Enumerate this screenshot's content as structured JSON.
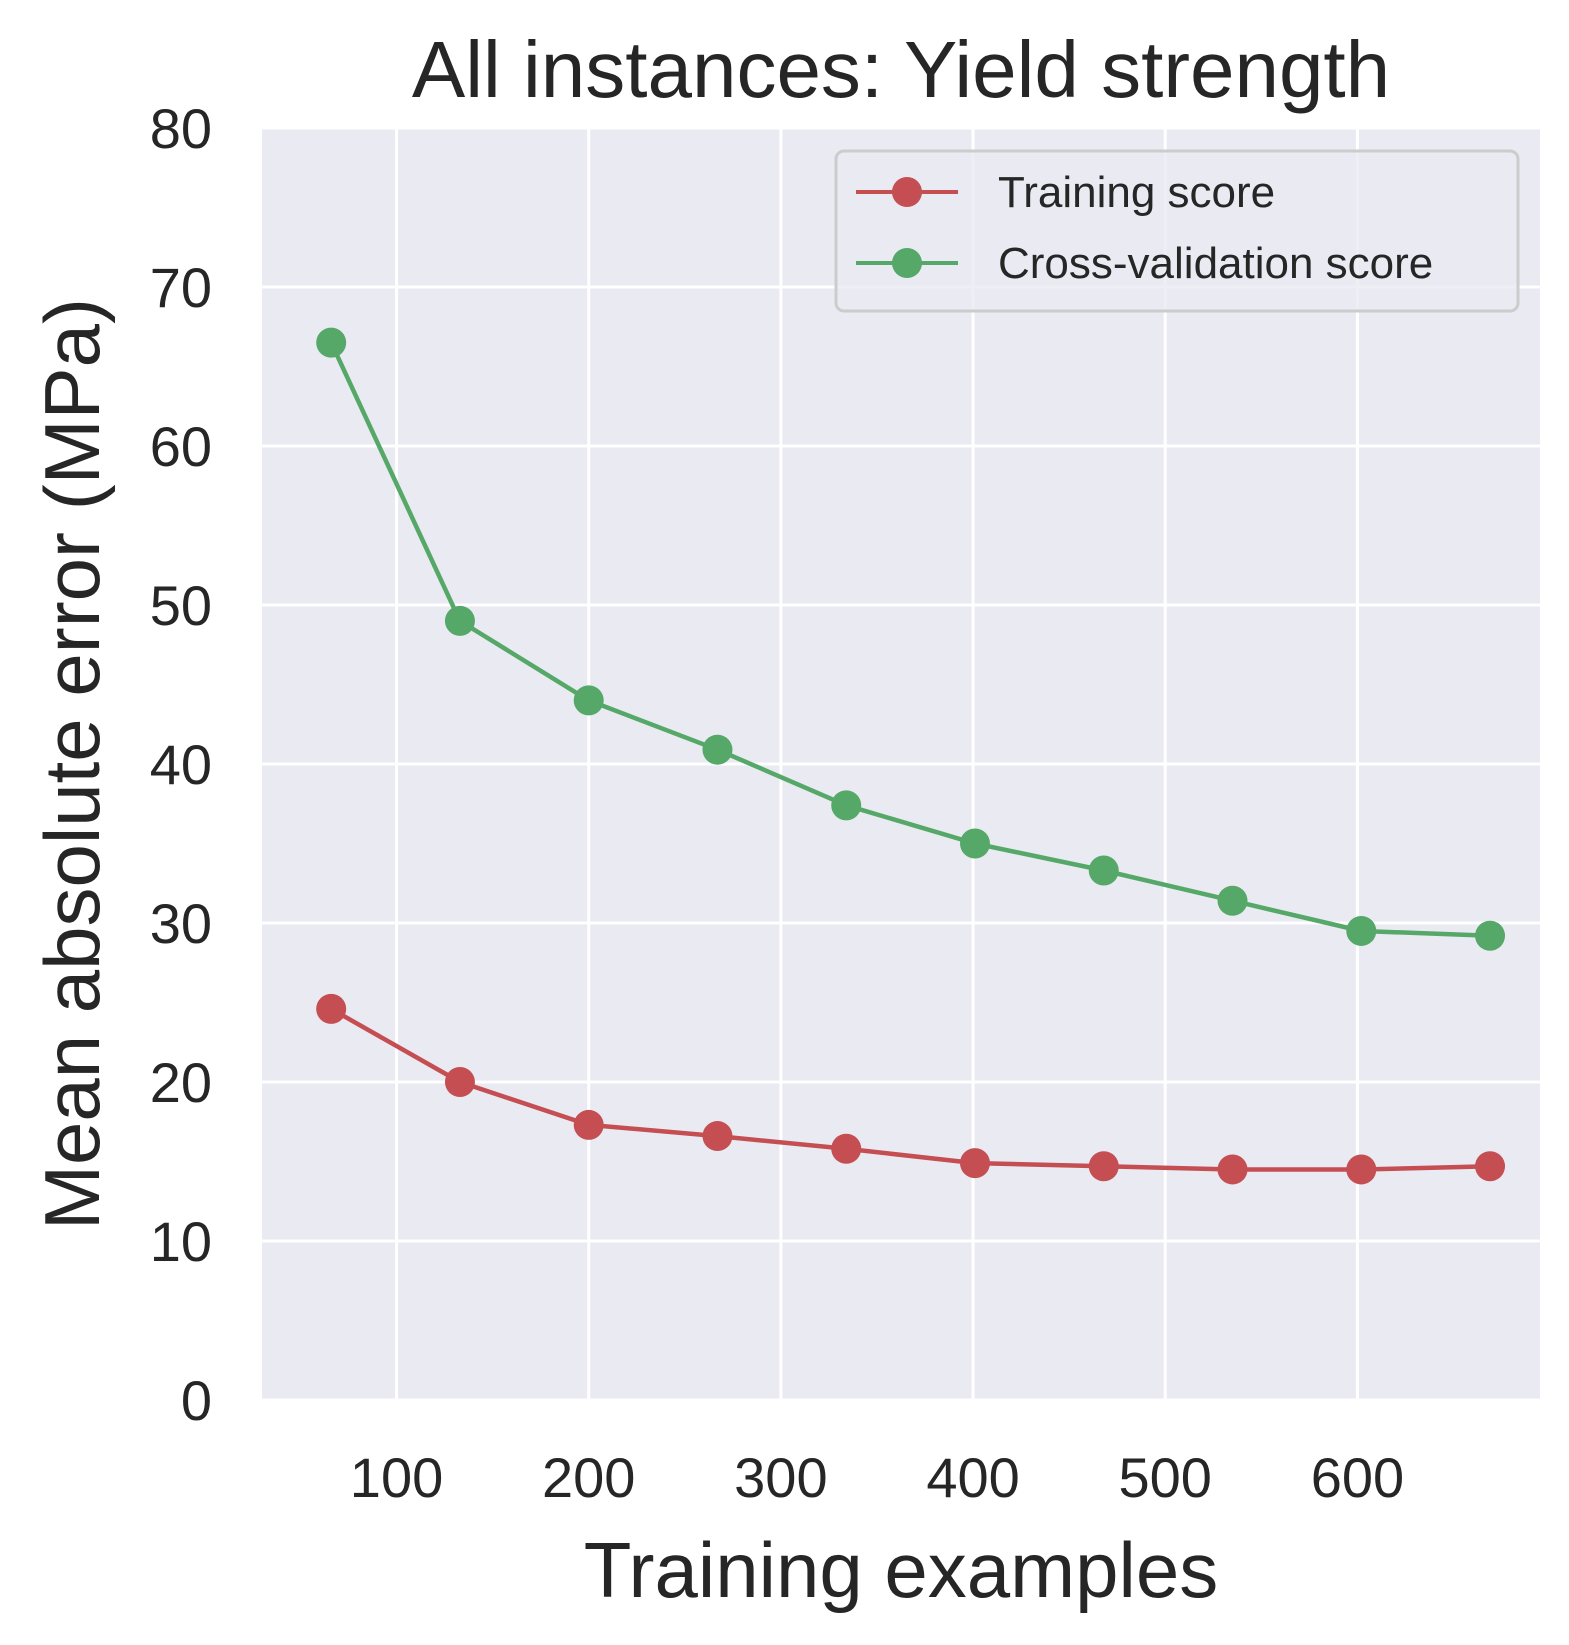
{
  "chart_data": {
    "type": "line",
    "title": "All instances: Yield strength",
    "xlabel": "Training examples",
    "ylabel": "Mean absolute error (MPa)",
    "xlim": [
      30,
      695
    ],
    "ylim": [
      0,
      80
    ],
    "xticks": [
      100,
      200,
      300,
      400,
      500,
      600
    ],
    "yticks": [
      0,
      10,
      20,
      30,
      40,
      50,
      60,
      70,
      80
    ],
    "grid": true,
    "legend_position": "top-right",
    "x": [
      66,
      133,
      200,
      267,
      334,
      401,
      468,
      535,
      602,
      669
    ],
    "series": [
      {
        "name": "Training score",
        "color": "#c44e52",
        "values": [
          24.6,
          20.0,
          17.3,
          16.6,
          15.8,
          14.9,
          14.7,
          14.5,
          14.5,
          14.7
        ]
      },
      {
        "name": "Cross-validation score",
        "color": "#55a868",
        "values": [
          66.5,
          49.0,
          44.0,
          40.9,
          37.4,
          35.0,
          33.3,
          31.4,
          29.5,
          29.2
        ]
      }
    ],
    "colors": {
      "plot_background": "#eaeaf2",
      "grid": "#ffffff",
      "text": "#262626"
    }
  }
}
